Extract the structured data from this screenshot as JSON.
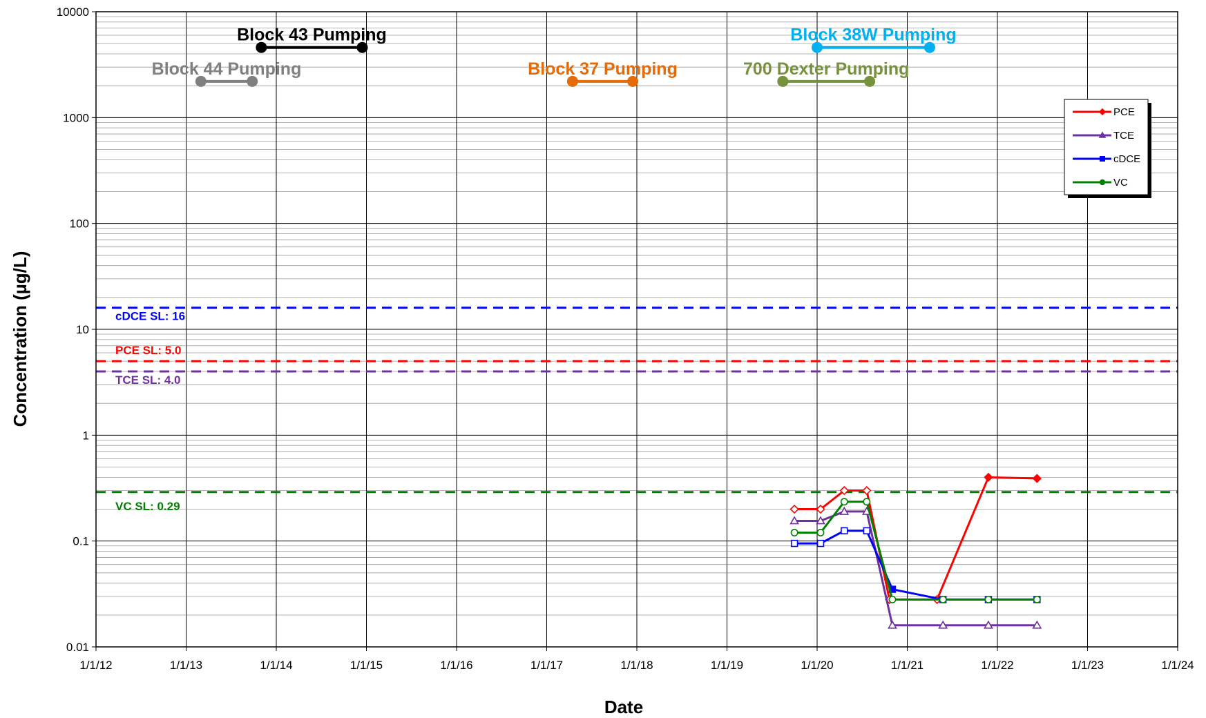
{
  "chart_data": {
    "type": "line",
    "xlabel": "Date",
    "ylabel": "Concentration (µg/L)",
    "y_scale": "log",
    "ylim": [
      0.01,
      10000
    ],
    "xlim": [
      "2012-01-01",
      "2024-01-01"
    ],
    "x_ticks": [
      "1/1/12",
      "1/1/13",
      "1/1/14",
      "1/1/15",
      "1/1/16",
      "1/1/17",
      "1/1/18",
      "1/1/19",
      "1/1/20",
      "1/1/21",
      "1/1/22",
      "1/1/23",
      "1/1/24"
    ],
    "y_ticks": [
      "0.01",
      "0.1",
      "1",
      "10",
      "100",
      "1000",
      "10000"
    ],
    "grid": true,
    "legend_position": "top-right",
    "series": [
      {
        "name": "PCE",
        "color": "#ff0000",
        "marker": "diamond",
        "points": [
          {
            "x": "2019-10-01",
            "y": 0.2,
            "nd": true
          },
          {
            "x": "2020-01-15",
            "y": 0.2,
            "nd": true
          },
          {
            "x": "2020-04-20",
            "y": 0.3,
            "nd": true
          },
          {
            "x": "2020-07-20",
            "y": 0.3,
            "nd": true
          },
          {
            "x": "2020-10-20",
            "y": 0.028,
            "nd": true
          },
          {
            "x": "2021-05-01",
            "y": 0.028,
            "nd": true
          },
          {
            "x": "2021-11-25",
            "y": 0.4,
            "nd": false
          },
          {
            "x": "2022-06-10",
            "y": 0.39,
            "nd": false
          }
        ]
      },
      {
        "name": "TCE",
        "color": "#7030a0",
        "marker": "triangle",
        "points": [
          {
            "x": "2019-10-01",
            "y": 0.155,
            "nd": true
          },
          {
            "x": "2020-01-15",
            "y": 0.155,
            "nd": true
          },
          {
            "x": "2020-04-20",
            "y": 0.19,
            "nd": true
          },
          {
            "x": "2020-07-20",
            "y": 0.19,
            "nd": true
          },
          {
            "x": "2020-11-01",
            "y": 0.016,
            "nd": true
          },
          {
            "x": "2021-05-25",
            "y": 0.016,
            "nd": true
          },
          {
            "x": "2021-11-25",
            "y": 0.016,
            "nd": true
          },
          {
            "x": "2022-06-10",
            "y": 0.016,
            "nd": true
          }
        ]
      },
      {
        "name": "cDCE",
        "color": "#0000ff",
        "marker": "square",
        "points": [
          {
            "x": "2019-10-01",
            "y": 0.095,
            "nd": true
          },
          {
            "x": "2020-01-15",
            "y": 0.095,
            "nd": true
          },
          {
            "x": "2020-04-20",
            "y": 0.125,
            "nd": true
          },
          {
            "x": "2020-07-20",
            "y": 0.125,
            "nd": true
          },
          {
            "x": "2020-11-01",
            "y": 0.035,
            "nd": false
          },
          {
            "x": "2021-05-25",
            "y": 0.028,
            "nd": true
          },
          {
            "x": "2021-11-25",
            "y": 0.028,
            "nd": true
          },
          {
            "x": "2022-06-10",
            "y": 0.028,
            "nd": true
          }
        ]
      },
      {
        "name": "VC",
        "color": "#008000",
        "marker": "circle",
        "points": [
          {
            "x": "2019-10-01",
            "y": 0.12,
            "nd": true
          },
          {
            "x": "2020-01-15",
            "y": 0.12,
            "nd": true
          },
          {
            "x": "2020-04-20",
            "y": 0.235,
            "nd": true
          },
          {
            "x": "2020-07-20",
            "y": 0.235,
            "nd": true
          },
          {
            "x": "2020-11-01",
            "y": 0.028,
            "nd": true
          },
          {
            "x": "2021-05-25",
            "y": 0.028,
            "nd": true
          },
          {
            "x": "2021-11-25",
            "y": 0.028,
            "nd": true
          },
          {
            "x": "2022-06-10",
            "y": 0.028,
            "nd": true
          }
        ]
      }
    ],
    "screening_levels": [
      {
        "label": "cDCE SL: 16",
        "value": 16,
        "color": "#0000ff"
      },
      {
        "label": "PCE SL: 5.0",
        "value": 5.0,
        "color": "#ff0000"
      },
      {
        "label": "TCE SL: 4.0",
        "value": 4.0,
        "color": "#7030a0"
      },
      {
        "label": "VC SL: 0.29",
        "value": 0.29,
        "color": "#008000"
      }
    ],
    "pumping_periods": [
      {
        "label": "Block 44 Pumping",
        "start": "2013-03-01",
        "end": "2013-09-25",
        "y": 2200,
        "color": "#808080"
      },
      {
        "label": "Block 43 Pumping",
        "start": "2013-11-01",
        "end": "2014-12-15",
        "y": 4600,
        "color": "#000000"
      },
      {
        "label": "Block 37 Pumping",
        "start": "2017-04-15",
        "end": "2017-12-15",
        "y": 2200,
        "color": "#e36c09"
      },
      {
        "label": "700 Dexter Pumping",
        "start": "2019-08-15",
        "end": "2020-08-01",
        "y": 2200,
        "color": "#76923c"
      },
      {
        "label": "Block 38W Pumping",
        "start": "2020-01-01",
        "end": "2021-04-01",
        "y": 4600,
        "color": "#00b0f0"
      }
    ]
  }
}
